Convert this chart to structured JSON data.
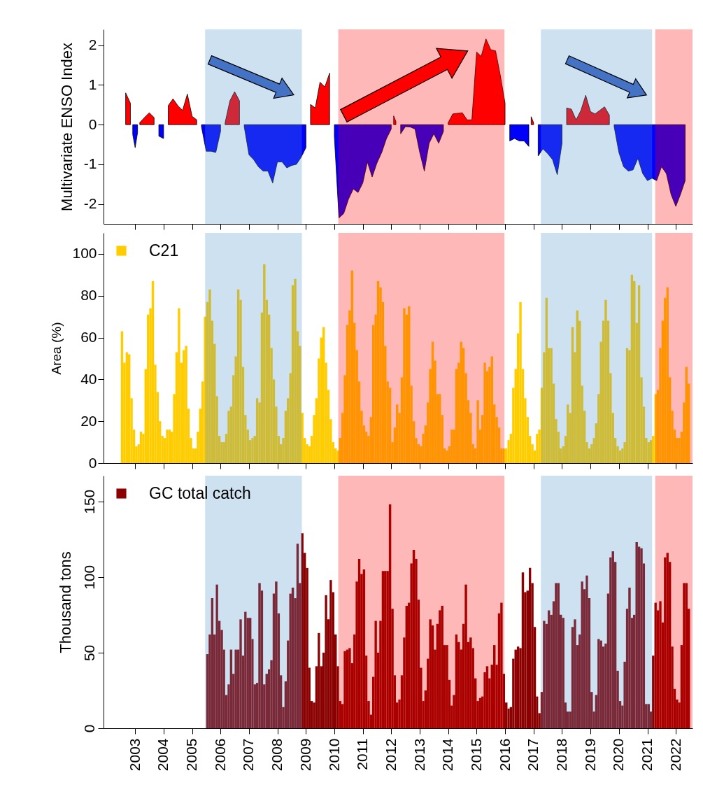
{
  "chart_data": [
    {
      "type": "area",
      "ylabel": "Multivariate ENSO Index",
      "tick_labels": "y",
      "xlim": [
        "2001-11-21",
        "2022-08-03"
      ],
      "ylim": [
        -2.5,
        2.4
      ],
      "yticks": [
        -2,
        -1,
        0,
        1,
        2
      ],
      "xticks": [
        "2003",
        "2004",
        "2005",
        "2006",
        "2007",
        "2008",
        "2009",
        "2010",
        "2011",
        "2012",
        "2013",
        "2014",
        "2015",
        "2016",
        "2017",
        "2018",
        "2019",
        "2020",
        "2021",
        "2022"
      ],
      "x": [
        "2002-09",
        "2002-11",
        "2002-12",
        "2003-01",
        "2003-02",
        "2003-03",
        "2003-05",
        "2003-07",
        "2003-09",
        "2003-11",
        "2004-01",
        "2004-03",
        "2004-05",
        "2004-07",
        "2004-09",
        "2004-11",
        "2005-01",
        "2005-03",
        "2005-05",
        "2005-07",
        "2005-09",
        "2005-11",
        "2006-01",
        "2006-03",
        "2006-05",
        "2006-07",
        "2006-09",
        "2006-11",
        "2007-01",
        "2007-03",
        "2007-05",
        "2007-07",
        "2007-09",
        "2007-11",
        "2008-01",
        "2008-03",
        "2008-05",
        "2008-07",
        "2008-09",
        "2008-11",
        "2009-01",
        "2009-03",
        "2009-05",
        "2009-07",
        "2009-09",
        "2009-11",
        "2010-01",
        "2010-03",
        "2010-05",
        "2010-07",
        "2010-09",
        "2010-11",
        "2011-01",
        "2011-03",
        "2011-05",
        "2011-07",
        "2011-09",
        "2011-11",
        "2012-01",
        "2012-02",
        "2012-03",
        "2012-05",
        "2012-07",
        "2012-09",
        "2012-11",
        "2013-01",
        "2013-03",
        "2013-05",
        "2013-07",
        "2013-09",
        "2013-11",
        "2014-01",
        "2014-03",
        "2014-07",
        "2014-09",
        "2014-11",
        "2015-01",
        "2015-03",
        "2015-05",
        "2015-07",
        "2015-09",
        "2015-11",
        "2016-01",
        "2016-03",
        "2016-05",
        "2016-07",
        "2016-09",
        "2016-11",
        "2016-12",
        "2017-01",
        "2017-03",
        "2017-05",
        "2017-07",
        "2017-09",
        "2017-11",
        "2018-01",
        "2018-03",
        "2018-05",
        "2018-07",
        "2018-09",
        "2018-11",
        "2019-01",
        "2019-03",
        "2019-05",
        "2019-07",
        "2019-09",
        "2019-11",
        "2020-01",
        "2020-03",
        "2020-05",
        "2020-07",
        "2020-09",
        "2020-11",
        "2021-01",
        "2021-03",
        "2021-05",
        "2021-07",
        "2021-09",
        "2021-11",
        "2022-01",
        "2022-03",
        "2022-05"
      ],
      "series": [
        {
          "color": "#ff0000",
          "values": [
            0.8,
            0.54,
            null,
            null,
            null,
            0.05,
            0.18,
            0.3,
            0.18,
            null,
            null,
            0.48,
            0.65,
            0.48,
            0.36,
            0.77,
            0.21,
            0.12,
            null,
            null,
            null,
            null,
            null,
            0.05,
            0.6,
            0.83,
            0.6,
            null,
            null,
            null,
            null,
            null,
            null,
            null,
            null,
            null,
            null,
            null,
            null,
            null,
            null,
            0.51,
            0.42,
            1.07,
            0.95,
            1.3,
            null,
            null,
            null,
            null,
            null,
            null,
            null,
            null,
            null,
            null,
            null,
            null,
            null,
            0.22,
            0.08,
            null,
            null,
            null,
            null,
            null,
            null,
            null,
            null,
            null,
            null,
            0.05,
            0.27,
            0.3,
            0.12,
            0.12,
            1.83,
            1.72,
            2.16,
            1.89,
            1.86,
            1.24,
            0.54,
            null,
            null,
            null,
            null,
            null,
            0.2,
            0.05,
            null,
            null,
            null,
            null,
            null,
            null,
            0.42,
            0.39,
            0.12,
            0.36,
            0.74,
            0.33,
            0.27,
            0.36,
            0.45,
            0.24,
            null,
            null,
            null,
            null,
            null,
            null,
            null,
            null,
            null,
            null,
            null,
            null,
            null,
            null,
            null,
            null
          ]
        },
        {
          "color": "#0000ff",
          "values": [
            null,
            null,
            -0.25,
            -0.58,
            -0.2,
            null,
            null,
            null,
            null,
            -0.29,
            -0.35,
            null,
            null,
            null,
            null,
            null,
            null,
            null,
            -0.05,
            -0.67,
            -0.67,
            -0.7,
            -0.17,
            null,
            null,
            null,
            null,
            -0.05,
            -0.76,
            -0.88,
            -1.06,
            -1.17,
            -1.17,
            -1.47,
            -0.94,
            -0.94,
            -1.09,
            -1.03,
            -1.0,
            -0.82,
            -0.58,
            null,
            null,
            null,
            null,
            null,
            -0.3,
            -2.35,
            -2.24,
            -1.88,
            -1.62,
            -1.71,
            -1.47,
            -0.94,
            -1.32,
            -0.97,
            -0.7,
            -0.35,
            -0.11,
            null,
            null,
            -0.23,
            -0.05,
            -0.06,
            -0.11,
            -0.7,
            -1.17,
            -0.47,
            -0.23,
            -0.47,
            -0.17,
            null,
            null,
            null,
            null,
            null,
            null,
            null,
            null,
            null,
            null,
            null,
            null,
            -0.41,
            -0.35,
            -0.41,
            -0.41,
            -0.55,
            null,
            null,
            -0.79,
            -0.61,
            -0.73,
            -0.88,
            -1.26,
            -0.47,
            null,
            null,
            null,
            null,
            null,
            null,
            null,
            null,
            null,
            null,
            -0.05,
            -0.7,
            -1.06,
            -1.17,
            -1.14,
            -0.85,
            -1.23,
            -1.41,
            -1.35,
            -1.41,
            -1.06,
            -1.23,
            -1.76,
            -2.06,
            -1.76,
            -1.41
          ]
        }
      ],
      "bands": [
        {
          "axis": "x",
          "from": "2005-06-17",
          "to": "2008-11-10",
          "color": "#4f94cd"
        },
        {
          "axis": "x",
          "from": "2010-02-20",
          "to": "2015-12-24",
          "color": "#ff0000"
        },
        {
          "axis": "x",
          "from": "2017-04-05",
          "to": "2021-03-03",
          "color": "#4f94cd"
        },
        {
          "axis": "x",
          "from": "2021-04-12",
          "to": "2022-08-03",
          "color": "#ff0000"
        }
      ]
    },
    {
      "type": "bar",
      "ylabel": "Area (%)",
      "tick_labels": "y",
      "legend": "top left",
      "xlim": [
        "2001-11-21",
        "2022-08-03"
      ],
      "ylim": [
        0,
        110
      ],
      "yticks": [
        0,
        20,
        40,
        60,
        80,
        100
      ],
      "xticks": [
        "2003",
        "2004",
        "2005",
        "2006",
        "2007",
        "2008",
        "2009",
        "2010",
        "2011",
        "2012",
        "2013",
        "2014",
        "2015",
        "2016",
        "2017",
        "2018",
        "2019",
        "2020",
        "2021",
        "2022"
      ],
      "x": [
        "2002-07",
        "2002-08",
        "2002-09",
        "2002-10",
        "2002-11",
        "2002-12",
        "2003-01",
        "2003-02",
        "2003-03",
        "2003-04",
        "2003-05",
        "2003-06",
        "2003-07",
        "2003-08",
        "2003-09",
        "2003-10",
        "2003-11",
        "2003-12",
        "2004-01",
        "2004-02",
        "2004-03",
        "2004-04",
        "2004-05",
        "2004-06",
        "2004-07",
        "2004-08",
        "2004-09",
        "2004-10",
        "2004-11",
        "2004-12",
        "2005-01",
        "2005-02",
        "2005-03",
        "2005-04",
        "2005-05",
        "2005-06",
        "2005-07",
        "2005-08",
        "2005-09",
        "2005-10",
        "2005-11",
        "2005-12",
        "2006-01",
        "2006-02",
        "2006-03",
        "2006-04",
        "2006-05",
        "2006-06",
        "2006-07",
        "2006-08",
        "2006-09",
        "2006-10",
        "2006-11",
        "2006-12",
        "2007-01",
        "2007-02",
        "2007-03",
        "2007-04",
        "2007-05",
        "2007-06",
        "2007-07",
        "2007-08",
        "2007-09",
        "2007-10",
        "2007-11",
        "2007-12",
        "2008-01",
        "2008-02",
        "2008-03",
        "2008-04",
        "2008-05",
        "2008-06",
        "2008-07",
        "2008-08",
        "2008-09",
        "2008-10",
        "2008-11",
        "2008-12",
        "2009-01",
        "2009-02",
        "2009-03",
        "2009-04",
        "2009-05",
        "2009-06",
        "2009-07",
        "2009-08",
        "2009-09",
        "2009-10",
        "2009-11",
        "2009-12",
        "2010-01",
        "2010-02",
        "2010-03",
        "2010-04",
        "2010-05",
        "2010-06",
        "2010-07",
        "2010-08",
        "2010-09",
        "2010-10",
        "2010-11",
        "2010-12",
        "2011-01",
        "2011-02",
        "2011-03",
        "2011-04",
        "2011-05",
        "2011-06",
        "2011-07",
        "2011-08",
        "2011-09",
        "2011-10",
        "2011-11",
        "2011-12",
        "2012-01",
        "2012-02",
        "2012-03",
        "2012-04",
        "2012-05",
        "2012-06",
        "2012-07",
        "2012-08",
        "2012-09",
        "2012-10",
        "2012-11",
        "2012-12",
        "2013-01",
        "2013-02",
        "2013-03",
        "2013-04",
        "2013-05",
        "2013-06",
        "2013-07",
        "2013-08",
        "2013-09",
        "2013-10",
        "2013-11",
        "2013-12",
        "2014-01",
        "2014-02",
        "2014-03",
        "2014-04",
        "2014-05",
        "2014-06",
        "2014-07",
        "2014-08",
        "2014-09",
        "2014-10",
        "2014-11",
        "2014-12",
        "2015-01",
        "2015-02",
        "2015-03",
        "2015-04",
        "2015-05",
        "2015-06",
        "2015-07",
        "2015-08",
        "2015-09",
        "2015-10",
        "2015-11",
        "2015-12",
        "2016-01",
        "2016-02",
        "2016-03",
        "2016-04",
        "2016-05",
        "2016-06",
        "2016-07",
        "2016-08",
        "2016-09",
        "2016-10",
        "2016-11",
        "2016-12",
        "2017-01",
        "2017-02",
        "2017-03",
        "2017-04",
        "2017-05",
        "2017-06",
        "2017-07",
        "2017-08",
        "2017-09",
        "2017-10",
        "2017-11",
        "2017-12",
        "2018-01",
        "2018-02",
        "2018-03",
        "2018-04",
        "2018-05",
        "2018-06",
        "2018-07",
        "2018-08",
        "2018-09",
        "2018-10",
        "2018-11",
        "2018-12",
        "2019-01",
        "2019-02",
        "2019-03",
        "2019-04",
        "2019-05",
        "2019-06",
        "2019-07",
        "2019-08",
        "2019-09",
        "2019-10",
        "2019-11",
        "2019-12",
        "2020-01",
        "2020-02",
        "2020-03",
        "2020-04",
        "2020-05",
        "2020-06",
        "2020-07",
        "2020-08",
        "2020-09",
        "2020-10",
        "2020-11",
        "2020-12",
        "2021-01",
        "2021-02",
        "2021-03",
        "2021-04",
        "2021-05",
        "2021-06",
        "2021-07",
        "2021-08",
        "2021-09",
        "2021-10",
        "2021-11",
        "2021-12",
        "2022-01",
        "2022-02",
        "2022-03",
        "2022-04",
        "2022-05",
        "2022-06"
      ],
      "series": [
        {
          "name": "C21",
          "color": "#ffcc00",
          "values": [
            63,
            48,
            53,
            52,
            31,
            16,
            8,
            9,
            15,
            14,
            45,
            71,
            74,
            87,
            47,
            34,
            20,
            13,
            12,
            16,
            16,
            15,
            33,
            53,
            74,
            48,
            54,
            56,
            26,
            12,
            7,
            7,
            15,
            26,
            39,
            70,
            77,
            83,
            68,
            57,
            32,
            13,
            10,
            10,
            14,
            25,
            27,
            42,
            51,
            83,
            78,
            46,
            23,
            16,
            11,
            12,
            13,
            31,
            29,
            72,
            95,
            78,
            71,
            55,
            40,
            27,
            13,
            9,
            12,
            25,
            31,
            43,
            85,
            88,
            63,
            56,
            24,
            12,
            9,
            8,
            13,
            23,
            31,
            50,
            60,
            65,
            48,
            35,
            21,
            10,
            7,
            6,
            12,
            24,
            42,
            66,
            73,
            92,
            67,
            54,
            39,
            25,
            18,
            15,
            13,
            22,
            66,
            71,
            87,
            84,
            77,
            56,
            39,
            36,
            10,
            17,
            28,
            24,
            41,
            74,
            71,
            75,
            37,
            20,
            12,
            9,
            8,
            14,
            18,
            29,
            45,
            58,
            49,
            33,
            33,
            23,
            7,
            6,
            8,
            16,
            16,
            45,
            48,
            58,
            55,
            43,
            30,
            24,
            9,
            7,
            30,
            16,
            23,
            48,
            44,
            46,
            51,
            28,
            22,
            17,
            7,
            7,
            7,
            11,
            14,
            36,
            45,
            62,
            77,
            45,
            31,
            22,
            13,
            9,
            6,
            14,
            16,
            36,
            53,
            79,
            55,
            55,
            38,
            21,
            15,
            7,
            8,
            13,
            28,
            24,
            65,
            53,
            73,
            68,
            37,
            25,
            10,
            7,
            9,
            12,
            19,
            33,
            58,
            68,
            78,
            68,
            43,
            24,
            12,
            8,
            6,
            7,
            10,
            55,
            54,
            90,
            87,
            67,
            85,
            41,
            27,
            12,
            10,
            11,
            13,
            33,
            35,
            55,
            68,
            79,
            84,
            41,
            25,
            16,
            12,
            12,
            15,
            29,
            46,
            38
          ]
        }
      ],
      "bands": [
        {
          "axis": "x",
          "from": "2005-06-17",
          "to": "2008-11-10",
          "color": "#4f94cd"
        },
        {
          "axis": "x",
          "from": "2010-02-20",
          "to": "2015-12-24",
          "color": "#ff0000"
        },
        {
          "axis": "x",
          "from": "2017-04-05",
          "to": "2021-03-03",
          "color": "#4f94cd"
        },
        {
          "axis": "x",
          "from": "2021-04-12",
          "to": "2022-08-03",
          "color": "#ff0000"
        }
      ]
    },
    {
      "type": "bar",
      "ylabel": "Thousand tons",
      "legend": "top left",
      "xlim": [
        "2001-11-21",
        "2022-08-03"
      ],
      "ylim": [
        0,
        167
      ],
      "yticks": [
        0,
        50,
        100,
        150
      ],
      "xticks": [
        "2003",
        "2004",
        "2005",
        "2006",
        "2007",
        "2008",
        "2009",
        "2010",
        "2011",
        "2012",
        "2013",
        "2014",
        "2015",
        "2016",
        "2017",
        "2018",
        "2019",
        "2020",
        "2021",
        "2022"
      ],
      "x": [
        "2005-07",
        "2005-08",
        "2005-09",
        "2005-10",
        "2005-11",
        "2005-12",
        "2006-01",
        "2006-02",
        "2006-03",
        "2006-04",
        "2006-05",
        "2006-06",
        "2006-07",
        "2006-08",
        "2006-09",
        "2006-10",
        "2006-11",
        "2006-12",
        "2007-01",
        "2007-02",
        "2007-03",
        "2007-04",
        "2007-05",
        "2007-06",
        "2007-07",
        "2007-08",
        "2007-09",
        "2007-10",
        "2007-11",
        "2007-12",
        "2008-01",
        "2008-02",
        "2008-03",
        "2008-04",
        "2008-05",
        "2008-06",
        "2008-07",
        "2008-08",
        "2008-09",
        "2008-10",
        "2008-11",
        "2008-12",
        "2009-01",
        "2009-02",
        "2009-03",
        "2009-04",
        "2009-05",
        "2009-06",
        "2009-07",
        "2009-08",
        "2009-09",
        "2009-10",
        "2009-11",
        "2009-12",
        "2010-01",
        "2010-02",
        "2010-03",
        "2010-04",
        "2010-05",
        "2010-06",
        "2010-07",
        "2010-08",
        "2010-09",
        "2010-10",
        "2010-11",
        "2010-12",
        "2011-01",
        "2011-02",
        "2011-03",
        "2011-04",
        "2011-05",
        "2011-06",
        "2011-07",
        "2011-08",
        "2011-09",
        "2011-10",
        "2011-11",
        "2011-12",
        "2012-01",
        "2012-02",
        "2012-03",
        "2012-04",
        "2012-05",
        "2012-06",
        "2012-07",
        "2012-08",
        "2012-09",
        "2012-10",
        "2012-11",
        "2012-12",
        "2013-01",
        "2013-02",
        "2013-03",
        "2013-04",
        "2013-05",
        "2013-06",
        "2013-07",
        "2013-08",
        "2013-09",
        "2013-10",
        "2013-11",
        "2013-12",
        "2014-01",
        "2014-02",
        "2014-03",
        "2014-04",
        "2014-05",
        "2014-06",
        "2014-07",
        "2014-08",
        "2014-09",
        "2014-10",
        "2014-11",
        "2014-12",
        "2015-01",
        "2015-02",
        "2015-03",
        "2015-04",
        "2015-05",
        "2015-06",
        "2015-07",
        "2015-08",
        "2015-09",
        "2015-10",
        "2015-11",
        "2015-12",
        "2016-01",
        "2016-02",
        "2016-03",
        "2016-04",
        "2016-05",
        "2016-06",
        "2016-07",
        "2016-08",
        "2016-09",
        "2016-10",
        "2016-11",
        "2016-12",
        "2017-01",
        "2017-02",
        "2017-03",
        "2017-04",
        "2017-05",
        "2017-06",
        "2017-07",
        "2017-08",
        "2017-09",
        "2017-10",
        "2017-11",
        "2017-12",
        "2018-01",
        "2018-02",
        "2018-03",
        "2018-04",
        "2018-05",
        "2018-06",
        "2018-07",
        "2018-08",
        "2018-09",
        "2018-10",
        "2018-11",
        "2018-12",
        "2019-01",
        "2019-02",
        "2019-03",
        "2019-04",
        "2019-05",
        "2019-06",
        "2019-07",
        "2019-08",
        "2019-09",
        "2019-10",
        "2019-11",
        "2019-12",
        "2020-01",
        "2020-02",
        "2020-03",
        "2020-04",
        "2020-05",
        "2020-06",
        "2020-07",
        "2020-08",
        "2020-09",
        "2020-10",
        "2020-11",
        "2020-12",
        "2021-01",
        "2021-02",
        "2021-03",
        "2021-04",
        "2021-05",
        "2021-06",
        "2021-07",
        "2021-08",
        "2021-09",
        "2021-10",
        "2021-11",
        "2021-12",
        "2022-01",
        "2022-02",
        "2022-03",
        "2022-04",
        "2022-05",
        "2022-06"
      ],
      "series": [
        {
          "name": "GC total catch",
          "color": "#8b0000",
          "values": [
            49,
            62,
            86,
            62,
            95,
            71,
            65,
            52,
            22,
            29,
            52,
            36,
            52,
            52,
            72,
            48,
            77,
            73,
            73,
            59,
            29,
            30,
            96,
            91,
            29,
            36,
            39,
            45,
            89,
            97,
            76,
            35,
            14,
            31,
            58,
            89,
            93,
            86,
            122,
            96,
            129,
            116,
            106,
            40,
            18,
            17,
            41,
            63,
            41,
            50,
            88,
            72,
            98,
            90,
            62,
            41,
            18,
            16,
            51,
            52,
            53,
            43,
            62,
            97,
            112,
            102,
            105,
            48,
            18,
            9,
            34,
            71,
            50,
            71,
            104,
            104,
            104,
            148,
            79,
            35,
            17,
            19,
            35,
            60,
            81,
            83,
            109,
            118,
            112,
            85,
            40,
            18,
            25,
            46,
            72,
            68,
            52,
            69,
            78,
            81,
            55,
            55,
            32,
            15,
            22,
            62,
            57,
            52,
            69,
            95,
            57,
            60,
            53,
            33,
            18,
            20,
            21,
            37,
            41,
            33,
            42,
            55,
            42,
            76,
            83,
            36,
            17,
            13,
            14,
            46,
            52,
            54,
            53,
            103,
            90,
            91,
            106,
            96,
            67,
            21,
            10,
            24,
            71,
            69,
            78,
            75,
            84,
            96,
            96,
            75,
            73,
            17,
            11,
            11,
            67,
            72,
            55,
            62,
            97,
            92,
            101,
            86,
            24,
            11,
            22,
            59,
            58,
            54,
            56,
            89,
            113,
            117,
            110,
            38,
            18,
            15,
            44,
            79,
            93,
            73,
            75,
            123,
            120,
            119,
            109,
            16,
            16,
            11,
            48,
            83,
            78,
            84,
            70,
            113,
            116,
            110,
            54,
            26,
            19,
            17,
            55,
            96,
            96,
            79
          ]
        }
      ],
      "bands": [
        {
          "axis": "x",
          "from": "2005-06-17",
          "to": "2008-11-10",
          "color": "#4f94cd"
        },
        {
          "axis": "x",
          "from": "2010-02-20",
          "to": "2015-12-24",
          "color": "#ff0000"
        },
        {
          "axis": "x",
          "from": "2017-04-05",
          "to": "2021-03-03",
          "color": "#4f94cd"
        },
        {
          "axis": "x",
          "from": "2021-04-12",
          "to": "2022-08-03",
          "color": "#ff0000"
        }
      ]
    }
  ]
}
